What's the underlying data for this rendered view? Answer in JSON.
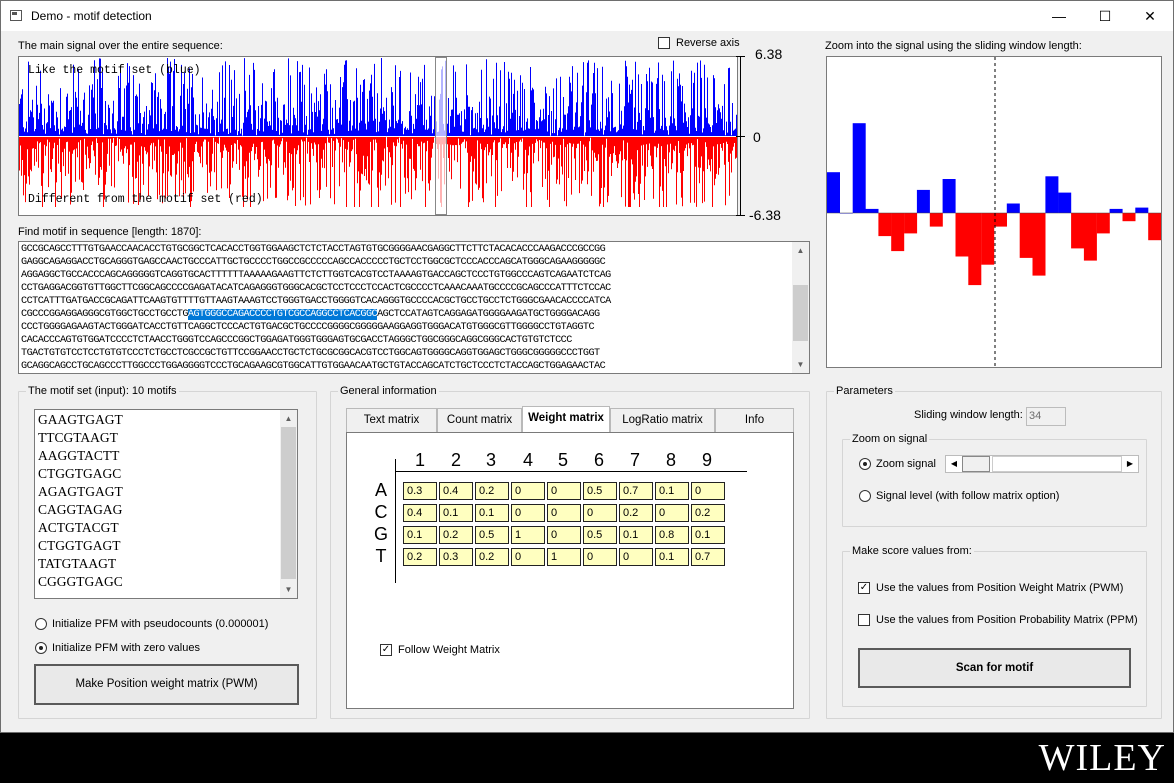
{
  "window": {
    "title": "Demo - motif detection",
    "minimize": "—",
    "maximize": "☐",
    "close": "✕"
  },
  "main_signal": {
    "label": "The main signal over the entire sequence:",
    "reverse_axis_label": "Reverse axis",
    "reverse_axis_checked": false,
    "top_text": "Like the motif set (blue)",
    "bottom_text": "Different from the motif set (red)",
    "axis_max": "6.38",
    "axis_zero": "0",
    "axis_min": "-6.38",
    "colors": {
      "positive": "#0000ff",
      "negative": "#ff0000"
    }
  },
  "zoom_signal": {
    "label": "Zoom into the signal using the sliding window length:",
    "bars": [
      3.0,
      0.0,
      6.6,
      0.3,
      -1.7,
      -2.8,
      -1.5,
      1.7,
      -1.0,
      2.5,
      -3.2,
      -5.3,
      -3.8,
      -1.0,
      0.7,
      -3.3,
      -4.6,
      2.7,
      1.5,
      -2.6,
      -3.5,
      -1.5,
      0.3,
      -0.6,
      0.4,
      -2.0
    ]
  },
  "sequence": {
    "label": "Find motif in sequence [length: 1870]:",
    "lines": [
      {
        "text": "GCCGCAGCCTTTGTGAACCAACACCTGTGCGGCTCACACCTGGTGGAAGCTCTCTACCTAGTGTGCGGGGAACGAGGCTTCTTCTACACACCCAAGACCCGCCGG"
      },
      {
        "text": "GAGGCAGAGGACCTGCAGGGTGAGCCAACTGCCCATTGCTGCCCCTGGCCGCCCCCAGCCACCCCCTGCTCCTGGCGCTCCCACCCAGCATGGGCAGAAGGGGGC"
      },
      {
        "text": "AGGAGGCTGCCACCCAGCAGGGGGTCAGGTGCACTTTTTTAAAAAGAAGTTCTCTTGGTCACGTCCTAAAAGTGACCAGCTCCCTGTGGCCCAGTCAGAATCTCAG"
      },
      {
        "text": "CCTGAGGACGGTGTTGGCTTCGGCAGCCCCGAGATACATCAGAGGGTGGGCACGCTCCTCCCTCCACTCGCCCCTCAAACAAATGCCCCGCAGCCCATTTCTCCAC"
      },
      {
        "text": "CCTCATTTGATGACCGCAGATTCAAGTGTTTTGTTAAGTAAAGTCCTGGGTGACCTGGGGTCACAGGGTGCCCCACGCTGCCTGCCTCTGGGCGAACACCCCATCA"
      },
      {
        "pre": "CGCCCGGAGGAGGGCGTGGCTGCCTGCCTG",
        "hl": "AGTGGGCCAGACCCCTGTCGCCAGGCCTCACGGC",
        "post": "AGCTCCATAGTCAGGAGATGGGGAAGATGCTGGGGACAGG"
      },
      {
        "text": "CCCTGGGGAGAAGTACTGGGATCACCTGTTCAGGCTCCCACTGTGACGCTGCCCCGGGGCGGGGGAAGGAGGTGGGACATGTGGGCGTTGGGGCCTGTAGGTC"
      },
      {
        "text": "CACACCCAGTGTGGATCCCCTCTAACCTGGGTCCAGCCCGGCTGGAGATGGGTGGGAGTGCGACCTAGGGCTGGCGGGCAGGCGGGCACTGTGTCTCCC"
      },
      {
        "text": "TGACTGTGTCCTCCTGTGTCCCTCTGCCTCGCCGCTGTTCCGGAACCTGCTCTGCGCGGCACGTCCTGGCAGTGGGGCAGGTGGAGCTGGGCGGGGGCCCTGGT"
      },
      {
        "text": "GCAGGCAGCCTGCAGCCCTTGGCCCTGGAGGGGTCCCTGCAGAAGCGTGGCATTGTGGAACAATGCTGTACCAGCATCTGCTCCCTCTACCAGCTGGAGAACTAC"
      }
    ]
  },
  "motif_set": {
    "label": "The motif set (input): 10 motifs",
    "motifs": [
      "GAAGTGAGT",
      "TTCGTAAGT",
      "AAGGTACTT",
      "CTGGTGAGC",
      "AGAGTGAGT",
      "CAGGTAGAG",
      "ACTGTACGT",
      "CTGGTGAGT",
      "TATGTAAGT",
      "CGGGTGAGC"
    ],
    "init_pseudo": "Initialize PFM with pseudocounts (0.000001)",
    "init_zero": "Initialize PFM with zero values",
    "make_button": "Make Position weight matrix (PWM)"
  },
  "general_info": {
    "label": "General information",
    "tabs": [
      "Text matrix",
      "Count matrix",
      "Weight matrix",
      "LogRatio matrix",
      "Info"
    ],
    "selected_tab": "Weight matrix",
    "columns": [
      "1",
      "2",
      "3",
      "4",
      "5",
      "6",
      "7",
      "8",
      "9"
    ],
    "rows": [
      {
        "base": "A",
        "values": [
          "0.3",
          "0.4",
          "0.2",
          "0",
          "0",
          "0.5",
          "0.7",
          "0.1",
          "0"
        ]
      },
      {
        "base": "C",
        "values": [
          "0.4",
          "0.1",
          "0.1",
          "0",
          "0",
          "0",
          "0.2",
          "0",
          "0.2"
        ]
      },
      {
        "base": "G",
        "values": [
          "0.1",
          "0.2",
          "0.5",
          "1",
          "0",
          "0.5",
          "0.1",
          "0.8",
          "0.1"
        ]
      },
      {
        "base": "T",
        "values": [
          "0.2",
          "0.3",
          "0.2",
          "0",
          "1",
          "0",
          "0",
          "0.1",
          "0.7"
        ]
      }
    ],
    "follow_label": "Follow Weight Matrix",
    "follow_checked": true
  },
  "parameters": {
    "label": "Parameters",
    "window_label": "Sliding window length:",
    "window_value": "34",
    "zoom_group": "Zoom on signal",
    "zoom_signal": "Zoom signal",
    "signal_level": "Signal level (with follow matrix option)",
    "score_group": "Make score values from:",
    "use_pwm": "Use the values from Position Weight Matrix (PWM)",
    "use_ppm": "Use the values from Position Probability Matrix (PPM)",
    "scan_button": "Scan for motif"
  },
  "brand": {
    "name": "WILEY"
  }
}
